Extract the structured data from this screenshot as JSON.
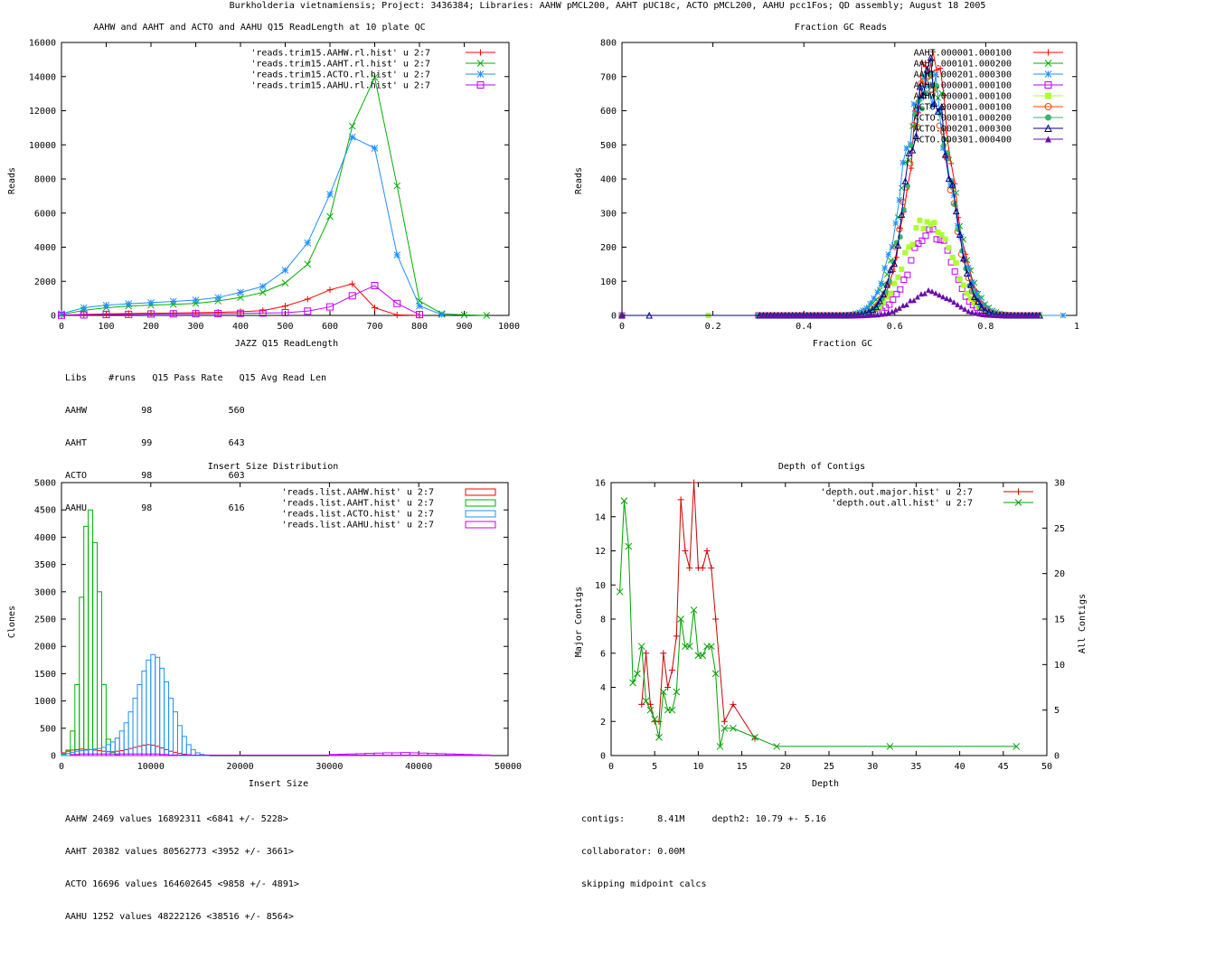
{
  "header": "Burkholderia vietnamiensis; Project: 3436384; Libraries: AAHW pMCL200, AAHT pUC18c, ACTO pMCL200, AAHU pcc1Fos; QD assembly; August 18 2005",
  "notes": {
    "readlen_table": [
      "Libs    #runs   Q15 Pass Rate   Q15 Avg Read Len",
      "AAHW          98              560",
      "AAHT          99              643",
      "ACTO          98              603",
      "AAHU          98              616"
    ],
    "insert_stats": [
      "AAHW 2469 values 16892311 <6841 +/- 5228>",
      "AAHT 20382 values 80562773 <3952 +/- 3661>",
      "ACTO 16696 values 164602645 <9858 +/- 4891>",
      "AAHU 1252 values 48222126 <38516 +/- 8564>"
    ],
    "depth_stats": [
      "contigs:      8.41M     depth2: 10.79 +- 5.16",
      "collaborator: 0.00M",
      "skipping midpoint calcs"
    ]
  },
  "chart_data": [
    {
      "type": "line",
      "title": "AAHW and AAHT and ACTO and AAHU Q15 ReadLength at 10 plate QC",
      "xlabel": "JAZZ Q15 ReadLength",
      "ylabel": "Reads",
      "xlim": [
        0,
        1000
      ],
      "ylim": [
        0,
        16000
      ],
      "xticks": [
        "0",
        "100",
        "200",
        "300",
        "400",
        "500",
        "600",
        "700",
        "800",
        "900",
        "1000"
      ],
      "yticks": [
        "0",
        "2000",
        "4000",
        "6000",
        "8000",
        "10000",
        "12000",
        "14000",
        "16000"
      ],
      "legend_position": "top-right",
      "series": [
        {
          "name": "'reads.trim15.AAHW.rl.hist' u 2:7",
          "color": "#ff0000",
          "marker": "plus",
          "x": [
            0,
            50,
            100,
            150,
            200,
            250,
            300,
            350,
            400,
            450,
            500,
            550,
            600,
            650,
            700,
            750,
            800
          ],
          "y": [
            20,
            60,
            90,
            110,
            130,
            140,
            160,
            180,
            220,
            280,
            550,
            950,
            1500,
            1850,
            450,
            30,
            0
          ]
        },
        {
          "name": "'reads.trim15.AAHT.rl.hist' u 2:7",
          "color": "#00b000",
          "marker": "x",
          "x": [
            0,
            50,
            100,
            150,
            200,
            250,
            300,
            350,
            400,
            450,
            500,
            550,
            600,
            650,
            700,
            750,
            800,
            850,
            900,
            950
          ],
          "y": [
            50,
            300,
            450,
            550,
            600,
            650,
            700,
            850,
            1050,
            1350,
            1900,
            3000,
            5800,
            11100,
            13950,
            7600,
            850,
            100,
            30,
            0
          ]
        },
        {
          "name": "'reads.trim15.ACTO.rl.hist' u 2:7",
          "color": "#1e90ff",
          "marker": "star",
          "x": [
            0,
            50,
            100,
            150,
            200,
            250,
            300,
            350,
            400,
            450,
            500,
            550,
            600,
            650,
            700,
            750,
            800,
            850
          ],
          "y": [
            100,
            450,
            600,
            680,
            750,
            820,
            900,
            1050,
            1350,
            1700,
            2650,
            4250,
            7100,
            10450,
            9800,
            3550,
            550,
            50
          ]
        },
        {
          "name": "'reads.trim15.AAHU.rl.hist' u 2:7",
          "color": "#c000ff",
          "marker": "square",
          "x": [
            0,
            50,
            100,
            150,
            200,
            250,
            300,
            350,
            400,
            450,
            500,
            550,
            600,
            650,
            700,
            750,
            800
          ],
          "y": [
            10,
            30,
            50,
            60,
            80,
            90,
            100,
            110,
            120,
            140,
            160,
            250,
            500,
            1150,
            1750,
            700,
            50
          ]
        }
      ]
    },
    {
      "type": "scatter",
      "title": "Fraction GC Reads",
      "xlabel": "Fraction GC",
      "ylabel": "Reads",
      "xlim": [
        0,
        1
      ],
      "ylim": [
        0,
        800
      ],
      "xticks": [
        "0",
        "0.2",
        "0.4",
        "0.6",
        "0.8",
        "1"
      ],
      "yticks": [
        "0",
        "100",
        "200",
        "300",
        "400",
        "500",
        "600",
        "700",
        "800"
      ],
      "legend_position": "top-right",
      "series": [
        {
          "name": "AAHT.000001.000100",
          "color": "#ff0000",
          "marker": "plus",
          "peak": 760,
          "center": 0.68,
          "sd": 0.045
        },
        {
          "name": "AAHT.000101.000200",
          "color": "#00b000",
          "marker": "x",
          "peak": 720,
          "center": 0.675,
          "sd": 0.05
        },
        {
          "name": "AAHT.000201.000300",
          "color": "#1e90ff",
          "marker": "star",
          "peak": 700,
          "center": 0.67,
          "sd": 0.05
        },
        {
          "name": "AAHU.000001.000100",
          "color": "#c000ff",
          "marker": "square",
          "peak": 250,
          "center": 0.68,
          "sd": 0.045
        },
        {
          "name": "AAHW.000001.000100",
          "color": "#adff2f",
          "marker": "filled-square",
          "peak": 290,
          "center": 0.675,
          "sd": 0.05
        },
        {
          "name": "ACTO.000001.000100",
          "color": "#ff4500",
          "marker": "circle",
          "peak": 690,
          "center": 0.675,
          "sd": 0.045
        },
        {
          "name": "ACTO.000101.000200",
          "color": "#3cb371",
          "marker": "filled-circle",
          "peak": 680,
          "center": 0.675,
          "sd": 0.045
        },
        {
          "name": "ACTO.000201.000300",
          "color": "#00008b",
          "marker": "triangle",
          "peak": 700,
          "center": 0.675,
          "sd": 0.045
        },
        {
          "name": "ACTO.000301.000400",
          "color": "#6a0dad",
          "marker": "filled-triangle",
          "peak": 70,
          "center": 0.68,
          "sd": 0.045
        }
      ]
    },
    {
      "type": "bar",
      "title": "Insert Size Distribution",
      "xlabel": "Insert Size",
      "ylabel": "Clones",
      "xlim": [
        0,
        50000
      ],
      "ylim": [
        0,
        5000
      ],
      "xticks": [
        "0",
        "10000",
        "20000",
        "30000",
        "40000",
        "50000"
      ],
      "yticks": [
        "0",
        "500",
        "1000",
        "1500",
        "2000",
        "2500",
        "3000",
        "3500",
        "4000",
        "4500",
        "5000"
      ],
      "legend_position": "top-right",
      "bin_width": 500,
      "series": [
        {
          "name": "'reads.list.AAHW.hist' u 2:7",
          "color": "#ff0000",
          "x": [
            0,
            500,
            1000,
            1500,
            2000,
            2500,
            3000,
            3500,
            4000,
            4500,
            5000,
            5500,
            6000,
            6500,
            7000,
            7500,
            8000,
            8500,
            9000,
            9500,
            10000,
            10500,
            11000,
            11500,
            12000,
            12500,
            13000,
            13500,
            14000,
            14500,
            15000
          ],
          "y": [
            50,
            80,
            100,
            110,
            120,
            110,
            110,
            100,
            90,
            80,
            70,
            70,
            80,
            90,
            110,
            130,
            150,
            170,
            190,
            200,
            190,
            170,
            140,
            110,
            80,
            60,
            40,
            25,
            15,
            8,
            3
          ]
        },
        {
          "name": "'reads.list.AAHT.hist' u 2:7",
          "color": "#00b000",
          "x": [
            0,
            500,
            1000,
            1500,
            2000,
            2500,
            3000,
            3500,
            4000,
            4500,
            5000,
            5500,
            6000
          ],
          "y": [
            30,
            100,
            450,
            1300,
            2900,
            4200,
            4500,
            3900,
            3000,
            1300,
            300,
            60,
            10
          ]
        },
        {
          "name": "'reads.list.ACTO.hist' u 2:7",
          "color": "#1e90ff",
          "x": [
            0,
            500,
            1000,
            1500,
            2000,
            2500,
            3000,
            3500,
            4000,
            4500,
            5000,
            5500,
            6000,
            6500,
            7000,
            7500,
            8000,
            8500,
            9000,
            9500,
            10000,
            10500,
            11000,
            11500,
            12000,
            12500,
            13000,
            13500,
            14000,
            14500,
            15000,
            15500,
            16000
          ],
          "y": [
            20,
            40,
            60,
            80,
            90,
            100,
            110,
            120,
            130,
            150,
            200,
            250,
            320,
            450,
            600,
            800,
            1050,
            1300,
            1550,
            1750,
            1850,
            1800,
            1600,
            1350,
            1050,
            800,
            550,
            350,
            200,
            110,
            50,
            20,
            10
          ]
        },
        {
          "name": "'reads.list.AAHU.hist' u 2:7",
          "color": "#c000ff",
          "x": [
            1000,
            2000,
            3000,
            4000,
            5000,
            6000,
            7000,
            8000,
            9000,
            10000,
            11000,
            12000,
            30000,
            31000,
            32000,
            33000,
            34000,
            35000,
            36000,
            37000,
            38000,
            39000,
            40000,
            41000,
            42000,
            43000,
            44000,
            45000,
            46000,
            47000
          ],
          "y": [
            20,
            30,
            30,
            30,
            30,
            30,
            30,
            30,
            30,
            30,
            20,
            10,
            20,
            25,
            30,
            35,
            40,
            45,
            50,
            50,
            55,
            50,
            45,
            40,
            35,
            30,
            25,
            20,
            15,
            10
          ]
        }
      ]
    },
    {
      "type": "line",
      "title": "Depth of Contigs",
      "xlabel": "Depth",
      "ylabel": "Major Contigs",
      "y2label": "All Contigs",
      "xlim": [
        0,
        50
      ],
      "ylim": [
        0,
        16
      ],
      "y2lim": [
        0,
        30
      ],
      "xticks": [
        "0",
        "5",
        "10",
        "15",
        "20",
        "25",
        "30",
        "35",
        "40",
        "45",
        "50"
      ],
      "yticks": [
        "0",
        "2",
        "4",
        "6",
        "8",
        "10",
        "12",
        "14",
        "16"
      ],
      "y2ticks": [
        "0",
        "5",
        "10",
        "15",
        "20",
        "25",
        "30"
      ],
      "legend_position": "top-right",
      "series": [
        {
          "name": "'depth.out.major.hist' u 2:7",
          "color": "#cc0000",
          "marker": "plus",
          "axis": "y",
          "x": [
            3.5,
            4,
            4.5,
            5,
            5.5,
            6,
            6.5,
            7,
            7.5,
            8,
            8.5,
            9,
            9.5,
            10,
            10.5,
            11,
            11.5,
            12,
            13,
            14,
            16.5
          ],
          "y": [
            3,
            6,
            3,
            2,
            2,
            6,
            4,
            5,
            7,
            15,
            12,
            11,
            16,
            11,
            11,
            12,
            11,
            8,
            2,
            3,
            1
          ]
        },
        {
          "name": "'depth.out.all.hist' u 2:7",
          "color": "#00a000",
          "marker": "x",
          "axis": "y2",
          "x": [
            1,
            1.5,
            2,
            2.5,
            3,
            3.5,
            4,
            4.5,
            5,
            5.5,
            6,
            6.5,
            7,
            7.5,
            8,
            8.5,
            9,
            9.5,
            10,
            10.5,
            11,
            11.5,
            12,
            12.5,
            13,
            14,
            16.5,
            19,
            32,
            46.5
          ],
          "y": [
            18,
            28,
            23,
            8,
            9,
            12,
            6,
            5,
            4,
            2,
            7,
            5,
            5,
            7,
            15,
            12,
            12,
            16,
            11,
            11,
            12,
            12,
            9,
            1,
            3,
            3,
            2,
            1,
            1,
            1
          ]
        }
      ]
    }
  ]
}
